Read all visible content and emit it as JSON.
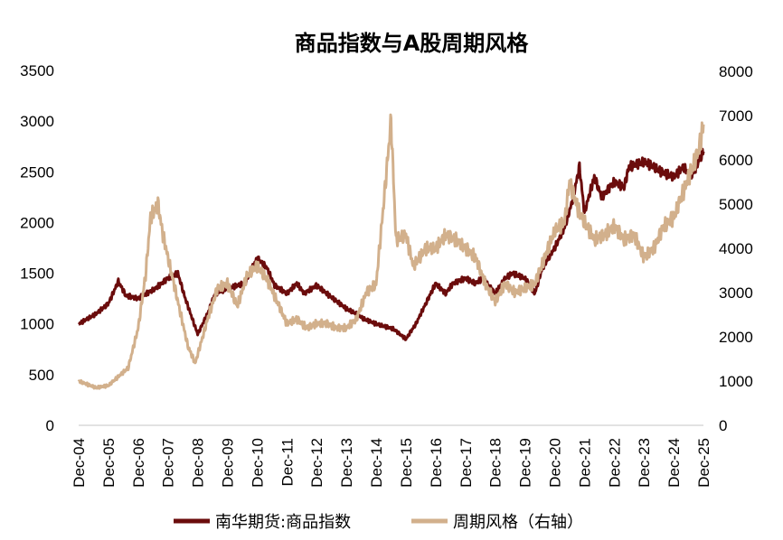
{
  "chart_data": {
    "type": "line",
    "title": "商品指数与A股周期风格",
    "xlabel": "",
    "ylabel": "",
    "x_tick_labels": [
      "Dec-04",
      "Dec-05",
      "Dec-06",
      "Dec-07",
      "Dec-08",
      "Dec-09",
      "Dec-10",
      "Dec-11",
      "Dec-12",
      "Dec-13",
      "Dec-14",
      "Dec-15",
      "Dec-16",
      "Dec-17",
      "Dec-18",
      "Dec-19",
      "Dec-20",
      "Dec-21",
      "Dec-22",
      "Dec-23",
      "Dec-24",
      "Dec-25"
    ],
    "xlim": [
      "Dec-04",
      "Dec-25"
    ],
    "y_left": {
      "ylim": [
        0,
        3500
      ],
      "ticks": [
        "0",
        "500",
        "1000",
        "1500",
        "2000",
        "2500",
        "3000",
        "3500"
      ]
    },
    "y_right": {
      "ylim": [
        0,
        8000
      ],
      "ticks": [
        "0",
        "1000",
        "2000",
        "3000",
        "4000",
        "5000",
        "6000",
        "7000",
        "8000"
      ]
    },
    "grid": false,
    "legend_position": "bottom",
    "series": [
      {
        "name": "南华期货:商品指数",
        "axis": "left",
        "color": "#6b0c0c",
        "x": [
          "2004-12",
          "2005-07",
          "2005-12",
          "2006-04",
          "2006-07",
          "2006-12",
          "2007-07",
          "2007-12",
          "2008-04",
          "2008-07",
          "2008-12",
          "2009-04",
          "2009-07",
          "2009-12",
          "2010-07",
          "2010-12",
          "2011-04",
          "2011-07",
          "2011-12",
          "2012-04",
          "2012-07",
          "2012-12",
          "2013-04",
          "2013-12",
          "2014-04",
          "2014-07",
          "2014-12",
          "2015-07",
          "2015-12",
          "2016-04",
          "2016-07",
          "2016-12",
          "2017-04",
          "2017-07",
          "2017-12",
          "2018-04",
          "2018-07",
          "2018-12",
          "2019-04",
          "2019-07",
          "2019-12",
          "2020-04",
          "2020-07",
          "2020-12",
          "2021-04",
          "2021-07",
          "2021-10",
          "2021-12",
          "2022-04",
          "2022-07",
          "2022-12",
          "2023-04",
          "2023-06",
          "2023-12",
          "2024-04",
          "2024-07",
          "2024-12",
          "2025-04",
          "2025-07",
          "2025-12"
        ],
        "values": [
          1000,
          1100,
          1200,
          1420,
          1280,
          1250,
          1350,
          1450,
          1500,
          1250,
          900,
          1100,
          1300,
          1350,
          1400,
          1650,
          1550,
          1380,
          1300,
          1400,
          1300,
          1380,
          1300,
          1150,
          1100,
          1050,
          1000,
          950,
          850,
          1000,
          1150,
          1400,
          1300,
          1400,
          1450,
          1400,
          1450,
          1300,
          1450,
          1500,
          1450,
          1300,
          1550,
          1750,
          1950,
          2200,
          2550,
          2100,
          2450,
          2250,
          2400,
          2350,
          2550,
          2600,
          2550,
          2500,
          2450,
          2550,
          2450,
          2700
        ]
      },
      {
        "name": "周期风格（右轴）",
        "axis": "right",
        "color": "#d2b08c",
        "x": [
          "2004-12",
          "2005-07",
          "2005-12",
          "2006-04",
          "2006-08",
          "2006-12",
          "2007-03",
          "2007-05",
          "2007-08",
          "2007-10",
          "2007-12",
          "2008-04",
          "2008-08",
          "2008-11",
          "2009-04",
          "2009-08",
          "2009-12",
          "2010-04",
          "2010-08",
          "2010-12",
          "2011-04",
          "2011-08",
          "2011-12",
          "2012-04",
          "2012-08",
          "2012-12",
          "2013-04",
          "2013-08",
          "2013-12",
          "2014-04",
          "2014-08",
          "2014-12",
          "2015-03",
          "2015-06",
          "2015-08",
          "2015-12",
          "2016-03",
          "2016-08",
          "2016-12",
          "2017-04",
          "2017-08",
          "2017-12",
          "2018-04",
          "2018-08",
          "2018-12",
          "2019-04",
          "2019-08",
          "2019-12",
          "2020-04",
          "2020-08",
          "2020-12",
          "2021-04",
          "2021-06",
          "2021-10",
          "2021-12",
          "2022-04",
          "2022-08",
          "2022-12",
          "2023-04",
          "2023-08",
          "2023-12",
          "2024-04",
          "2024-08",
          "2024-12",
          "2025-04",
          "2025-08",
          "2025-10",
          "2025-12"
        ],
        "values": [
          1000,
          850,
          900,
          1100,
          1300,
          2200,
          3400,
          4700,
          5000,
          4300,
          3800,
          2800,
          1800,
          1400,
          2400,
          3100,
          3200,
          2700,
          3400,
          3600,
          3300,
          2800,
          2300,
          2400,
          2200,
          2300,
          2300,
          2200,
          2200,
          2400,
          3000,
          3200,
          5000,
          6900,
          4200,
          4300,
          3600,
          4000,
          4000,
          4300,
          4200,
          4000,
          3800,
          3200,
          2800,
          3200,
          3000,
          3100,
          3200,
          3800,
          4400,
          4600,
          5500,
          4800,
          4600,
          4200,
          4300,
          4500,
          4200,
          4300,
          3800,
          4000,
          4500,
          4700,
          5300,
          5900,
          6200,
          6800
        ]
      }
    ]
  }
}
